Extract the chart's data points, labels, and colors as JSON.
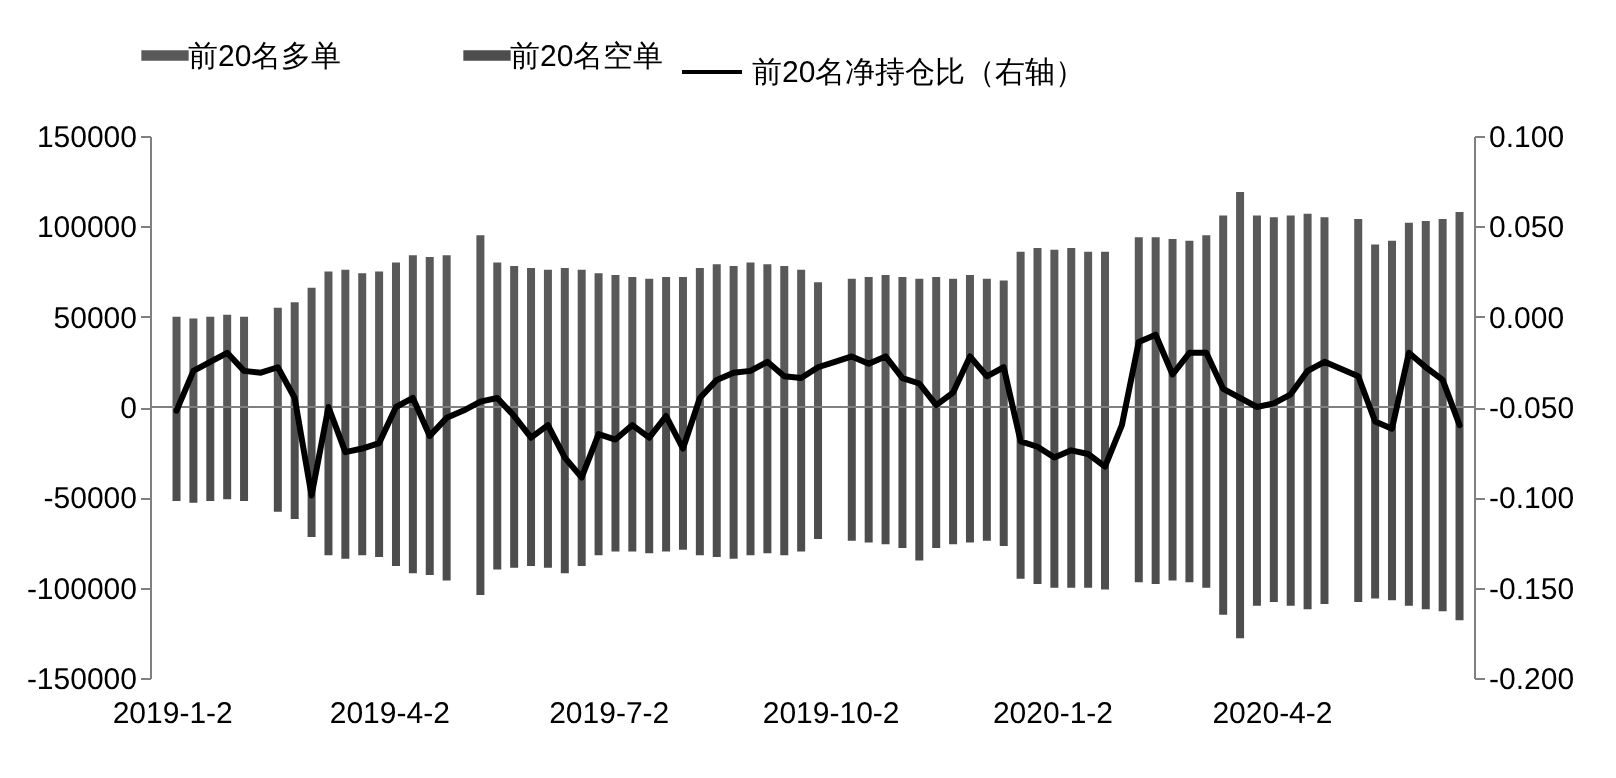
{
  "chart_data": {
    "type": "bar",
    "legend": "top",
    "stacked": true,
    "x": [
      "2019-01-04",
      "2019-01-11",
      "2019-01-18",
      "2019-01-25",
      "2019-02-01",
      "2019-02-08",
      "2019-02-15",
      "2019-02-22",
      "2019-03-01",
      "2019-03-08",
      "2019-03-15",
      "2019-03-22",
      "2019-03-29",
      "2019-04-05",
      "2019-04-12",
      "2019-04-19",
      "2019-04-26",
      "2019-05-03",
      "2019-05-10",
      "2019-05-17",
      "2019-05-24",
      "2019-05-31",
      "2019-06-07",
      "2019-06-14",
      "2019-06-21",
      "2019-06-28",
      "2019-07-05",
      "2019-07-12",
      "2019-07-19",
      "2019-07-26",
      "2019-08-02",
      "2019-08-09",
      "2019-08-16",
      "2019-08-23",
      "2019-08-30",
      "2019-09-06",
      "2019-09-13",
      "2019-09-20",
      "2019-09-27",
      "2019-10-04",
      "2019-10-11",
      "2019-10-18",
      "2019-10-25",
      "2019-11-01",
      "2019-11-08",
      "2019-11-15",
      "2019-11-22",
      "2019-11-29",
      "2019-12-06",
      "2019-12-13",
      "2019-12-20",
      "2019-12-27",
      "2020-01-03",
      "2020-01-10",
      "2020-01-17",
      "2020-01-24",
      "2020-01-31",
      "2020-02-07",
      "2020-02-14",
      "2020-02-21",
      "2020-02-28",
      "2020-03-06",
      "2020-03-13",
      "2020-03-20",
      "2020-03-27",
      "2020-04-03",
      "2020-04-10",
      "2020-04-17",
      "2020-04-24",
      "2020-05-01",
      "2020-05-08",
      "2020-05-15",
      "2020-05-22",
      "2020-05-29",
      "2020-06-05",
      "2020-06-12",
      "2020-06-19"
    ],
    "series": [
      {
        "name": "前20名多单",
        "color": "#595959",
        "values": [
          50000,
          49000,
          50000,
          51000,
          50000,
          null,
          55000,
          58000,
          66000,
          75000,
          76000,
          74000,
          75000,
          80000,
          84000,
          83000,
          84000,
          null,
          95000,
          80000,
          78000,
          77000,
          76000,
          77000,
          76000,
          74000,
          73000,
          72000,
          71000,
          72000,
          72000,
          77000,
          79000,
          78000,
          80000,
          79000,
          78000,
          76000,
          69000,
          null,
          71000,
          72000,
          73000,
          72000,
          71000,
          72000,
          71000,
          73000,
          71000,
          70000,
          86000,
          88000,
          87000,
          88000,
          86000,
          86000,
          null,
          94000,
          94000,
          93000,
          92000,
          95000,
          106000,
          119000,
          106000,
          105000,
          106000,
          107000,
          105000,
          null,
          104000,
          90000,
          92000,
          102000,
          103000,
          104000,
          108000
        ]
      },
      {
        "name": "前20名空单",
        "color": "#4d4d4d",
        "values": [
          -52000,
          -53000,
          -52000,
          -51000,
          -52000,
          null,
          -58000,
          -62000,
          -72000,
          -82000,
          -84000,
          -82000,
          -83000,
          -88000,
          -92000,
          -93000,
          -96000,
          null,
          -104000,
          -90000,
          -89000,
          -88000,
          -89000,
          -92000,
          -88000,
          -82000,
          -80000,
          -80000,
          -81000,
          -80000,
          -79000,
          -82000,
          -83000,
          -84000,
          -82000,
          -81000,
          -82000,
          -80000,
          -73000,
          null,
          -74000,
          -75000,
          -76000,
          -78000,
          -85000,
          -78000,
          -76000,
          -75000,
          -74000,
          -77000,
          -95000,
          -98000,
          -100000,
          -100000,
          -100000,
          -101000,
          null,
          -97000,
          -98000,
          -96000,
          -97000,
          -100000,
          -115000,
          -128000,
          -110000,
          -108000,
          -110000,
          -112000,
          -109000,
          null,
          -108000,
          -106000,
          -107000,
          -110000,
          -112000,
          -113000,
          -118000
        ]
      },
      {
        "name": "前20名净持仓比（右轴）",
        "type": "line",
        "axis": "y2",
        "color": "#000000",
        "values": [
          -0.052,
          -0.03,
          -0.025,
          -0.02,
          -0.03,
          -0.031,
          -0.028,
          -0.045,
          -0.099,
          -0.05,
          -0.075,
          -0.073,
          -0.07,
          -0.05,
          -0.045,
          -0.066,
          -0.056,
          -0.052,
          -0.047,
          -0.045,
          -0.055,
          -0.067,
          -0.06,
          -0.078,
          -0.089,
          -0.065,
          -0.068,
          -0.06,
          -0.067,
          -0.055,
          -0.073,
          -0.045,
          -0.035,
          -0.031,
          -0.03,
          -0.025,
          -0.033,
          -0.034,
          -0.028,
          -0.025,
          -0.022,
          -0.026,
          -0.022,
          -0.034,
          -0.037,
          -0.049,
          -0.042,
          -0.022,
          -0.033,
          -0.028,
          -0.069,
          -0.072,
          -0.078,
          -0.074,
          -0.076,
          -0.083,
          -0.06,
          -0.014,
          -0.01,
          -0.032,
          -0.02,
          -0.02,
          -0.04,
          -0.045,
          -0.05,
          -0.048,
          -0.043,
          -0.03,
          -0.025,
          -0.029,
          -0.033,
          -0.058,
          -0.062,
          -0.02,
          -0.028,
          -0.035,
          -0.06
        ]
      }
    ],
    "xlim": [
      "2018-12-24",
      "2020-06-25"
    ],
    "xticks": [
      {
        "value": "2019-01-02",
        "label": "2019-1-2"
      },
      {
        "value": "2019-04-02",
        "label": "2019-4-2"
      },
      {
        "value": "2019-07-02",
        "label": "2019-7-2"
      },
      {
        "value": "2019-10-02",
        "label": "2019-10-2"
      },
      {
        "value": "2020-01-02",
        "label": "2020-1-2"
      },
      {
        "value": "2020-04-02",
        "label": "2020-4-2"
      }
    ],
    "ylim": [
      -150000,
      150000
    ],
    "yticks": [
      -150000,
      -100000,
      -50000,
      0,
      50000,
      100000,
      150000
    ],
    "y2lim": [
      -0.2,
      0.1
    ],
    "y2ticks": [
      {
        "value": -0.2,
        "label": "-0.200"
      },
      {
        "value": -0.15,
        "label": "-0.150"
      },
      {
        "value": -0.1,
        "label": "-0.100"
      },
      {
        "value": -0.05,
        "label": "-0.050"
      },
      {
        "value": 0,
        "label": "0.000"
      },
      {
        "value": 0.05,
        "label": "0.050"
      },
      {
        "value": 0.1,
        "label": "0.100"
      }
    ],
    "ref_lines": [
      {
        "axis": "y",
        "value": 0,
        "color": "#808080"
      }
    ]
  }
}
